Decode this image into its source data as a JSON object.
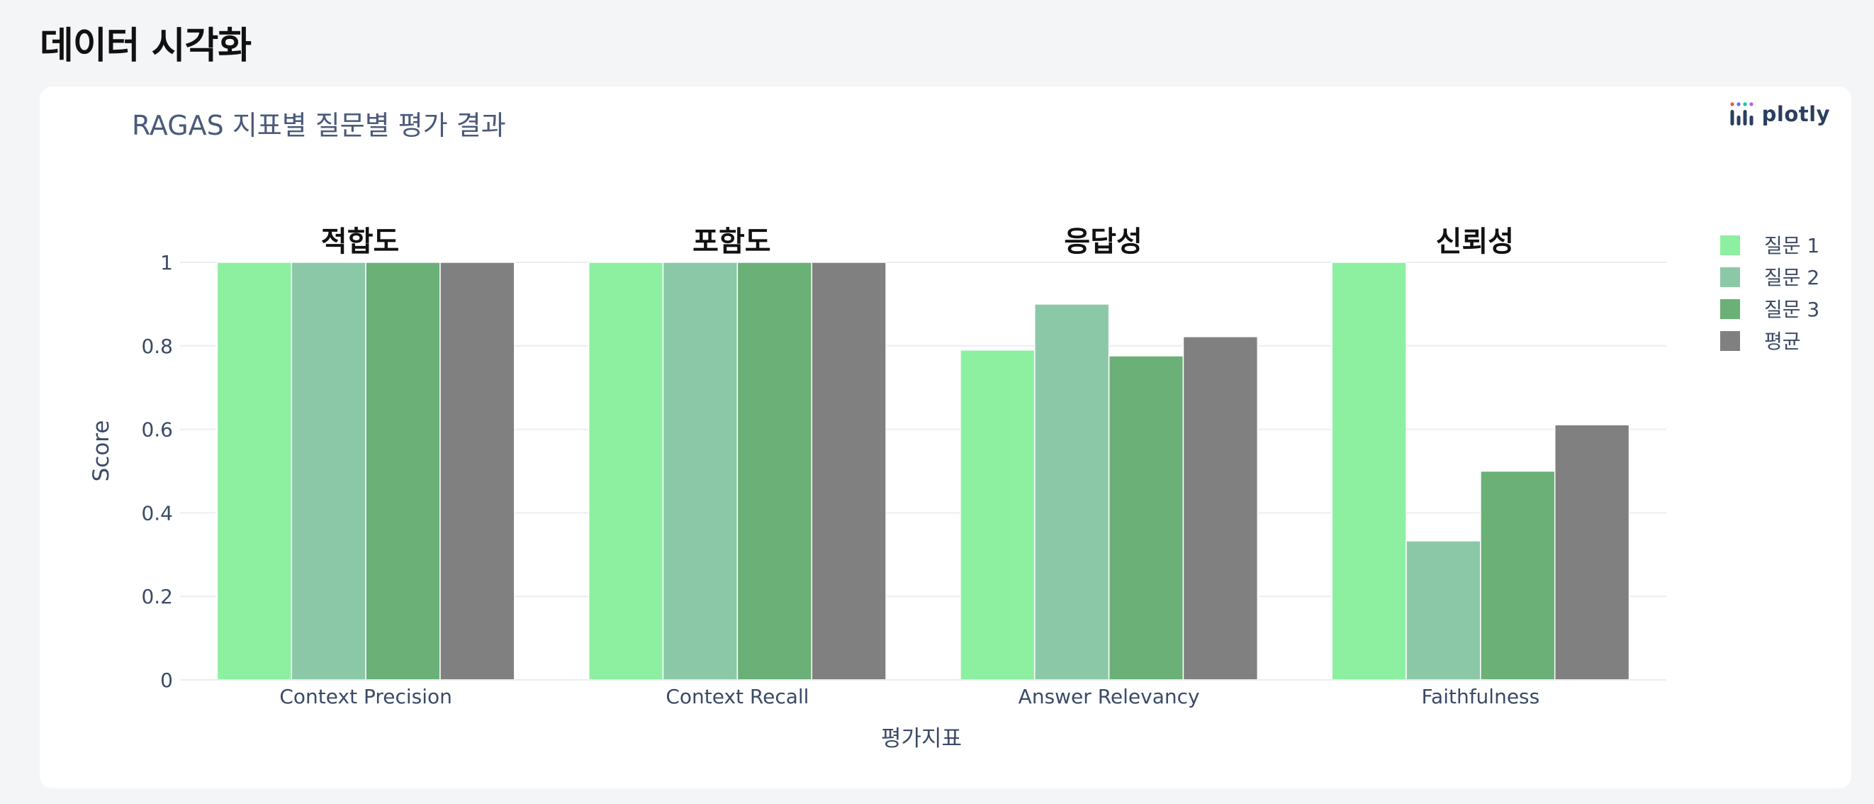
{
  "page": {
    "heading": "데이터 시각화"
  },
  "modebar": {
    "label": "plotly",
    "icon": "plotly-logo-icon"
  },
  "colors": {
    "question1": "#8df0a0",
    "question2": "#8bc8a8",
    "question3": "#6bb077",
    "average": "#808080",
    "title_text": "#4a5a7a",
    "axis_text": "#3b4a66",
    "gridline": "#ececf3",
    "annotation_text": "#111111"
  },
  "chart_data": {
    "type": "bar",
    "title": "RAGAS 지표별 질문별 평가 결과",
    "xlabel": "평가지표",
    "ylabel": "Score",
    "ylim": [
      0,
      1
    ],
    "yticks": [
      0,
      0.2,
      0.4,
      0.6,
      0.8,
      1
    ],
    "ytick_labels": [
      "0",
      "0.2",
      "0.4",
      "0.6",
      "0.8",
      "1"
    ],
    "grid": true,
    "legend_position": "top-right",
    "categories": [
      "Context Precision",
      "Context Recall",
      "Answer Relevancy",
      "Faithfulness"
    ],
    "category_annotations": [
      "적합도",
      "포함도",
      "응답성",
      "신뢰성"
    ],
    "series": [
      {
        "name": "질문 1",
        "color": "#8df0a0",
        "values": [
          1,
          1,
          0.79,
          1
        ]
      },
      {
        "name": "질문 2",
        "color": "#8bc8a8",
        "values": [
          1,
          1,
          0.9,
          0.333
        ]
      },
      {
        "name": "질문 3",
        "color": "#6bb077",
        "values": [
          1,
          1,
          0.776,
          0.5
        ]
      },
      {
        "name": "평균",
        "color": "#808080",
        "values": [
          1,
          1,
          0.822,
          0.611
        ]
      }
    ]
  }
}
